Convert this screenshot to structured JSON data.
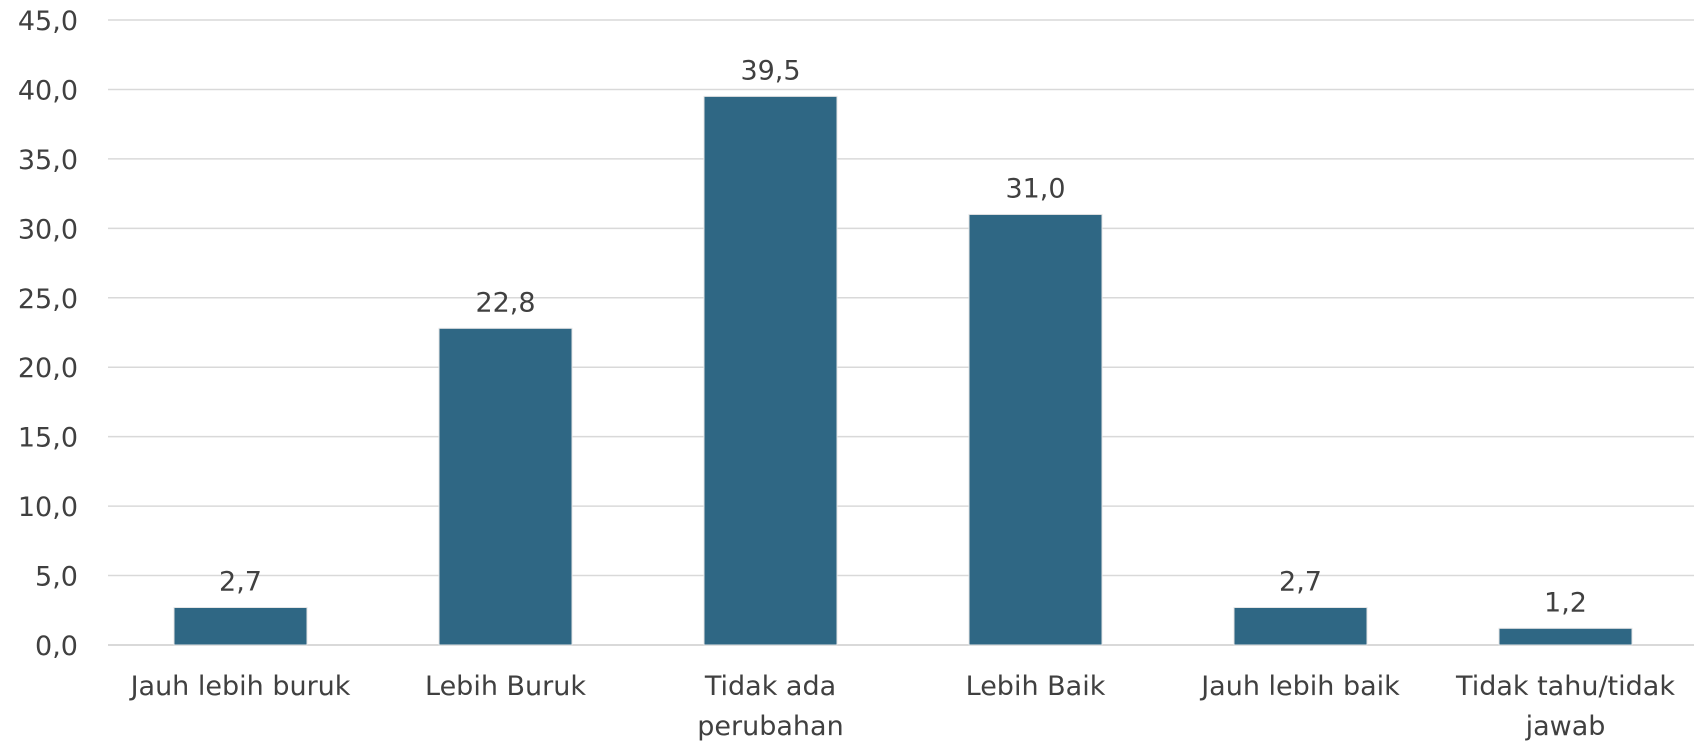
{
  "chart_data": {
    "type": "bar",
    "categories": [
      "Jauh lebih buruk",
      "Lebih Buruk",
      "Tidak ada perubahan",
      "Lebih Baik",
      "Jauh lebih baik",
      "Tidak tahu/tidak jawab"
    ],
    "category_lines": [
      [
        "Jauh lebih buruk"
      ],
      [
        "Lebih Buruk"
      ],
      [
        "Tidak ada",
        "perubahan"
      ],
      [
        "Lebih Baik"
      ],
      [
        "Jauh lebih baik"
      ],
      [
        "Tidak tahu/tidak",
        "jawab"
      ]
    ],
    "values": [
      2.7,
      22.8,
      39.5,
      31.0,
      2.7,
      1.2
    ],
    "data_labels": [
      "2,7",
      "22,8",
      "39,5",
      "31,0",
      "2,7",
      "1,2"
    ],
    "ylim": [
      0,
      45
    ],
    "yticks": [
      "0,0",
      "5,0",
      "10,0",
      "15,0",
      "20,0",
      "25,0",
      "30,0",
      "35,0",
      "40,0",
      "45,0"
    ],
    "ytick_values": [
      0,
      5,
      10,
      15,
      20,
      25,
      30,
      35,
      40,
      45
    ],
    "grid": true,
    "legend": "none",
    "title": "",
    "xlabel": "",
    "ylabel": "",
    "colors": {
      "bar": "#2F6784",
      "grid": "#D9D9D9",
      "text": "#404040"
    }
  }
}
